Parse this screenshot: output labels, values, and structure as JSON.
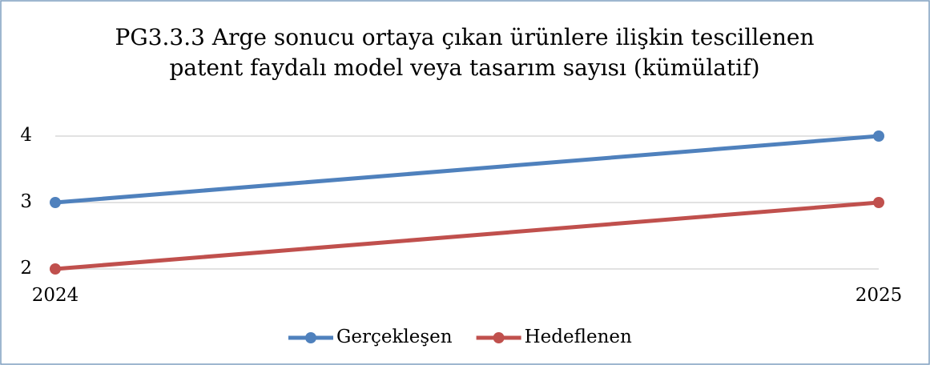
{
  "chart_data": {
    "type": "line",
    "title": "PG3.3.3 Arge sonucu ortaya çıkan ürünlere ilişkin tescillenen patent faydalı model veya tasarım sayısı (kümülatif)",
    "categories": [
      "2024",
      "2025"
    ],
    "series": [
      {
        "name": "Gerçekleşen",
        "color": "#4f81bd",
        "values": [
          3,
          4
        ]
      },
      {
        "name": "Hedeflenen",
        "color": "#c0504d",
        "values": [
          2,
          3
        ]
      }
    ],
    "ylim": [
      2,
      4
    ],
    "yticks": [
      2,
      3,
      4
    ],
    "grid": true,
    "legend": "bottom"
  }
}
